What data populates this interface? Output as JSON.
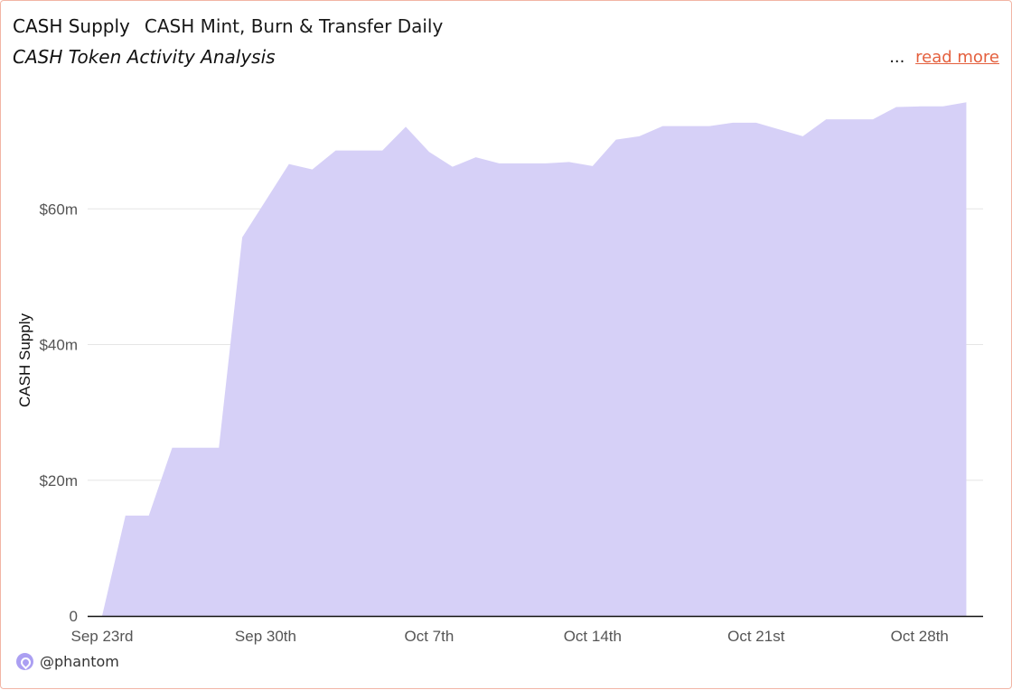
{
  "header": {
    "title": "CASH Supply",
    "subtitle": "CASH Mint, Burn & Transfer Daily",
    "description": "CASH Token Activity Analysis",
    "ellipsis": "...",
    "read_more": "read more"
  },
  "footer": {
    "handle": "@phantom",
    "icon": "phantom-logo-icon"
  },
  "colors": {
    "area": "#d6d0f7",
    "grid": "#e6e6e6",
    "axis": "#111111",
    "link": "#e4603e",
    "border": "#f2b5a5"
  },
  "chart_data": {
    "type": "area",
    "title": "CASH Supply",
    "ylabel": "CASH Supply",
    "xlabel": "",
    "ylim": [
      0,
      80
    ],
    "yticks": [
      0,
      20,
      40,
      60
    ],
    "ytick_labels": [
      "0",
      "$20m",
      "$40m",
      "$60m"
    ],
    "xtick_labels": [
      "Sep 23rd",
      "Sep 30th",
      "Oct 7th",
      "Oct 14th",
      "Oct 21st",
      "Oct 28th"
    ],
    "x_start": "2024-09-23",
    "x": [
      "2024-09-23",
      "2024-09-24",
      "2024-09-25",
      "2024-09-26",
      "2024-09-27",
      "2024-09-28",
      "2024-09-29",
      "2024-09-30",
      "2024-10-01",
      "2024-10-02",
      "2024-10-03",
      "2024-10-04",
      "2024-10-05",
      "2024-10-06",
      "2024-10-07",
      "2024-10-08",
      "2024-10-09",
      "2024-10-10",
      "2024-10-11",
      "2024-10-12",
      "2024-10-13",
      "2024-10-14",
      "2024-10-15",
      "2024-10-16",
      "2024-10-17",
      "2024-10-18",
      "2024-10-19",
      "2024-10-20",
      "2024-10-21",
      "2024-10-22",
      "2024-10-23",
      "2024-10-24",
      "2024-10-25",
      "2024-10-26",
      "2024-10-27",
      "2024-10-28",
      "2024-10-29",
      "2024-10-30"
    ],
    "series": [
      {
        "name": "CASH Supply",
        "values": [
          0,
          14.8,
          14.8,
          24.8,
          24.8,
          24.8,
          55.8,
          61.2,
          66.6,
          65.8,
          68.6,
          68.6,
          68.6,
          72.1,
          68.4,
          66.2,
          67.6,
          66.7,
          66.7,
          66.7,
          66.9,
          66.3,
          70.2,
          70.7,
          72.2,
          72.2,
          72.2,
          72.7,
          72.7,
          71.7,
          70.7,
          73.2,
          73.2,
          73.2,
          75.0,
          75.1,
          75.1,
          75.7
        ]
      }
    ],
    "grid": true,
    "legend": "none"
  }
}
